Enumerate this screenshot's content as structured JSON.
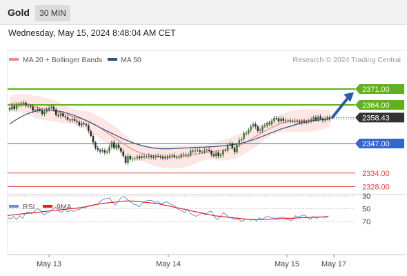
{
  "header": {
    "instrument": "Gold",
    "timeframe": "30 MIN"
  },
  "datetime": "Wednesday, May 15, 2024 8:48:04 AM CET",
  "legend": {
    "ma20_label": "MA 20 + Bollinger Bands",
    "ma50_label": "MA 50",
    "credit": "Research © 2024 Trading Central",
    "rsi_label": "RSI",
    "ma9_label": "9MA"
  },
  "colors": {
    "ma20": "#f08a8a",
    "ma50": "#2f4f7f",
    "candle": "#2e8a2e",
    "resistance": "#62b01e",
    "pivot": "#3566c9",
    "support": "#e04040",
    "rsi": "#6d8fd9",
    "rsi_ma": "#e02020",
    "last_price": "#333333"
  },
  "chart_data": [
    {
      "type": "candlestick",
      "price_axis_ticks": [
        "2371.00",
        "2364.00",
        "2358.43",
        "2347.00",
        "2334.00",
        "2328.00"
      ],
      "ylim": [
        2323,
        2376
      ],
      "last_price": 2358.43,
      "levels": [
        {
          "value": 2371.0,
          "label": "2371.00",
          "kind": "resistance",
          "color": "#62b01e"
        },
        {
          "value": 2364.0,
          "label": "2364.00",
          "kind": "resistance",
          "color": "#62b01e"
        },
        {
          "value": 2347.0,
          "label": "2347.00",
          "kind": "pivot",
          "color": "#3566c9"
        },
        {
          "value": 2334.0,
          "label": "2334.00",
          "kind": "support",
          "color": "#e04040"
        },
        {
          "value": 2328.0,
          "label": "2328.00",
          "kind": "support",
          "color": "#e04040"
        }
      ],
      "x_ticks": [
        "May 13",
        "May 14",
        "May 15",
        "May 17"
      ],
      "close_series": [
        2362.0,
        2363.5,
        2362.2,
        2363.8,
        2364.2,
        2364.5,
        2365.0,
        2363.8,
        2363.5,
        2363.2,
        2361.5,
        2361.7,
        2362.2,
        2361.5,
        2360.0,
        2361.0,
        2362.0,
        2362.8,
        2363.2,
        2362.0,
        2359.5,
        2359.2,
        2360.2,
        2359.0,
        2358.6,
        2357.5,
        2357.2,
        2357.8,
        2357.0,
        2356.5,
        2355.0,
        2356.0,
        2355.5,
        2355.0,
        2352.5,
        2350.3,
        2347.5,
        2345.0,
        2344.2,
        2343.5,
        2344.0,
        2343.0,
        2343.5,
        2345.5,
        2347.5,
        2345.0,
        2346.5,
        2345.0,
        2343.5,
        2341.5,
        2338.5,
        2341.5,
        2340.0,
        2340.2,
        2340.5,
        2341.2,
        2340.6,
        2341.4,
        2341.2,
        2341.2,
        2341.6,
        2341.0,
        2340.9,
        2341.6,
        2341.3,
        2341.2,
        2340.5,
        2341.2,
        2340.8,
        2341.6,
        2341.8,
        2341.2,
        2341.0,
        2341.0,
        2342.2,
        2342.0,
        2341.8,
        2342.0,
        2343.8,
        2343.5,
        2344.0,
        2344.0,
        2343.4,
        2343.4,
        2344.0,
        2344.3,
        2343.7,
        2342.2,
        2341.5,
        2343.0,
        2341.5,
        2342.0,
        2343.8,
        2344.0,
        2346.5,
        2347.0,
        2345.0,
        2343.2,
        2346.5,
        2348.5,
        2349.0,
        2351.5,
        2351.5,
        2353.0,
        2354.5,
        2355.5,
        2354.5,
        2352.5,
        2352.8,
        2354.5,
        2355.0,
        2356.0,
        2355.5,
        2357.0,
        2358.2,
        2358.0,
        2356.8,
        2358.0,
        2357.0,
        2357.2,
        2357.2,
        2357.0,
        2356.6,
        2357.0,
        2356.7,
        2356.2,
        2357.0,
        2356.5,
        2356.5,
        2357.0,
        2357.6,
        2358.5,
        2357.5,
        2358.8,
        2358.0,
        2357.2,
        2358.0,
        2358.5,
        2357.8
      ],
      "ma20_series": [
        2364.5,
        2364.7,
        2364.8,
        2364.9,
        2364.9,
        2364.8,
        2364.6,
        2364.3,
        2364.0,
        2363.7,
        2363.4,
        2363.1,
        2362.9,
        2362.7,
        2362.5,
        2362.3,
        2362.1,
        2361.9,
        2361.7,
        2361.4,
        2361.1,
        2360.8,
        2360.5,
        2360.2,
        2359.9,
        2359.6,
        2359.3,
        2359.0,
        2358.7,
        2358.4,
        2358.1,
        2357.8,
        2357.5,
        2357.2,
        2356.8,
        2356.3,
        2355.8,
        2355.2,
        2354.6,
        2353.9,
        2353.2,
        2352.5,
        2351.8,
        2351.1,
        2350.4,
        2349.7,
        2349.0,
        2348.3,
        2347.6,
        2346.9,
        2346.2,
        2345.6,
        2345.0,
        2344.4,
        2343.9,
        2343.4,
        2343.0,
        2342.7,
        2342.4,
        2342.2,
        2342.0,
        2341.8,
        2341.6,
        2341.4,
        2341.3,
        2341.2,
        2341.1,
        2341.0,
        2341.0,
        2341.0,
        2341.0,
        2341.0,
        2341.0,
        2341.1,
        2341.2,
        2341.3,
        2341.4,
        2341.6,
        2341.8,
        2342.0,
        2342.2,
        2342.4,
        2342.6,
        2342.8,
        2343.0,
        2343.2,
        2343.4,
        2343.5,
        2343.6,
        2343.7,
        2343.8,
        2343.9,
        2344.0,
        2344.2,
        2344.4,
        2344.7,
        2345.0,
        2345.3,
        2345.7,
        2346.1,
        2346.6,
        2347.1,
        2347.7,
        2348.3,
        2348.9,
        2349.5,
        2350.1,
        2350.7,
        2351.3,
        2351.9,
        2352.5,
        2353.0,
        2353.5,
        2354.0,
        2354.5,
        2355.0,
        2355.4,
        2355.8,
        2356.1,
        2356.3,
        2356.5,
        2356.7,
        2356.8,
        2356.9,
        2357.0,
        2357.0,
        2357.1,
        2357.1,
        2357.1,
        2357.2,
        2357.2,
        2357.3,
        2357.4,
        2357.5,
        2357.6,
        2357.7,
        2357.8,
        2357.9,
        2358.0
      ],
      "ma50_series": [
        2355.5,
        2356.3,
        2357.0,
        2357.6,
        2358.2,
        2358.8,
        2359.3,
        2359.8,
        2360.2,
        2360.6,
        2360.9,
        2361.2,
        2361.4,
        2361.6,
        2361.7,
        2361.8,
        2361.8,
        2361.8,
        2361.7,
        2361.6,
        2361.5,
        2361.3,
        2361.1,
        2360.9,
        2360.6,
        2360.3,
        2360.0,
        2359.7,
        2359.3,
        2358.9,
        2358.5,
        2358.0,
        2357.6,
        2357.1,
        2356.6,
        2356.1,
        2355.6,
        2355.1,
        2354.6,
        2354.0,
        2353.5,
        2353.0,
        2352.5,
        2352.0,
        2351.5,
        2351.0,
        2350.5,
        2350.0,
        2349.5,
        2349.0,
        2348.6,
        2348.2,
        2347.8,
        2347.4,
        2347.0,
        2346.7,
        2346.4,
        2346.1,
        2345.8,
        2345.6,
        2345.4,
        2345.2,
        2345.0,
        2344.9,
        2344.8,
        2344.7,
        2344.7,
        2344.7,
        2344.7,
        2344.7,
        2344.7,
        2344.8,
        2344.8,
        2344.9,
        2345.0,
        2345.0,
        2345.1,
        2345.1,
        2345.2,
        2345.2,
        2345.3,
        2345.3,
        2345.4,
        2345.4,
        2345.4,
        2345.5,
        2345.5,
        2345.6,
        2345.6,
        2345.7,
        2345.8,
        2345.9,
        2346.0,
        2346.1,
        2346.2,
        2346.3,
        2346.5,
        2346.6,
        2346.8,
        2347.0,
        2347.2,
        2347.4,
        2347.7,
        2348.0,
        2348.3,
        2348.6,
        2349.0,
        2349.4,
        2349.8,
        2350.2,
        2350.6,
        2351.0,
        2351.4,
        2351.8,
        2352.2,
        2352.6,
        2353.0,
        2353.4,
        2353.7,
        2354.0,
        2354.3,
        2354.6,
        2354.9,
        2355.2,
        2355.5,
        2355.8,
        2356.0,
        2356.2,
        2356.4,
        2356.6,
        2356.8,
        2357.0,
        2357.2,
        2357.3,
        2357.4,
        2357.5,
        2357.6,
        2357.7,
        2357.8
      ]
    },
    {
      "type": "line",
      "title": "RSI",
      "yticks": [
        70,
        50,
        30
      ],
      "ylim": [
        20,
        80
      ],
      "series": [
        {
          "name": "RSI",
          "values": [
            64,
            66,
            62,
            67,
            61,
            65,
            57,
            55,
            58,
            54,
            50,
            52,
            60,
            57,
            55,
            51,
            47,
            53,
            56,
            51,
            55,
            53,
            54,
            52,
            51,
            47,
            49,
            45,
            46,
            43,
            44,
            38,
            35,
            34,
            33,
            40,
            44,
            38,
            32,
            31,
            36,
            39,
            43,
            44,
            47,
            41,
            38,
            37,
            37,
            40,
            39,
            42,
            41,
            39,
            42,
            44,
            47,
            51,
            53,
            56,
            51,
            57,
            60,
            62,
            59,
            56,
            60,
            55,
            54,
            63,
            67,
            62,
            56,
            60,
            64,
            65,
            67,
            66,
            70,
            67,
            66,
            68,
            66,
            69,
            64,
            67,
            63,
            62,
            64,
            65,
            65,
            64,
            63,
            66,
            68,
            68,
            61,
            63,
            61,
            60,
            64,
            67,
            62,
            65,
            63,
            63,
            64,
            61
          ]
        },
        {
          "name": "9MA",
          "values": [
            61,
            60,
            59.5,
            59,
            58.5,
            58,
            57.5,
            57,
            56.5,
            56,
            55.5,
            55,
            54.5,
            54,
            53.5,
            53,
            52.5,
            52,
            51.5,
            51,
            50.5,
            50,
            49.5,
            49,
            48.5,
            48,
            47,
            46,
            45,
            44,
            43,
            42,
            41.5,
            41,
            40.5,
            40,
            39.5,
            39,
            38.5,
            38,
            38,
            38,
            38,
            38.5,
            39,
            39.5,
            40,
            40.5,
            41,
            41.5,
            42,
            43,
            44,
            45,
            46,
            47,
            48,
            49,
            50,
            51,
            52,
            53,
            54,
            55,
            56,
            57,
            58,
            59,
            60,
            61,
            61.5,
            62,
            62.5,
            63,
            63.5,
            64,
            64.5,
            65,
            65.5,
            66,
            66.5,
            67,
            67,
            67,
            67,
            67,
            66.5,
            66.5,
            66,
            66,
            66,
            65.5,
            65.5,
            65,
            65,
            65,
            64.5,
            64.5,
            64,
            64,
            64,
            63.5,
            63.5,
            63,
            63,
            63,
            62.5,
            62.5
          ]
        }
      ]
    }
  ]
}
